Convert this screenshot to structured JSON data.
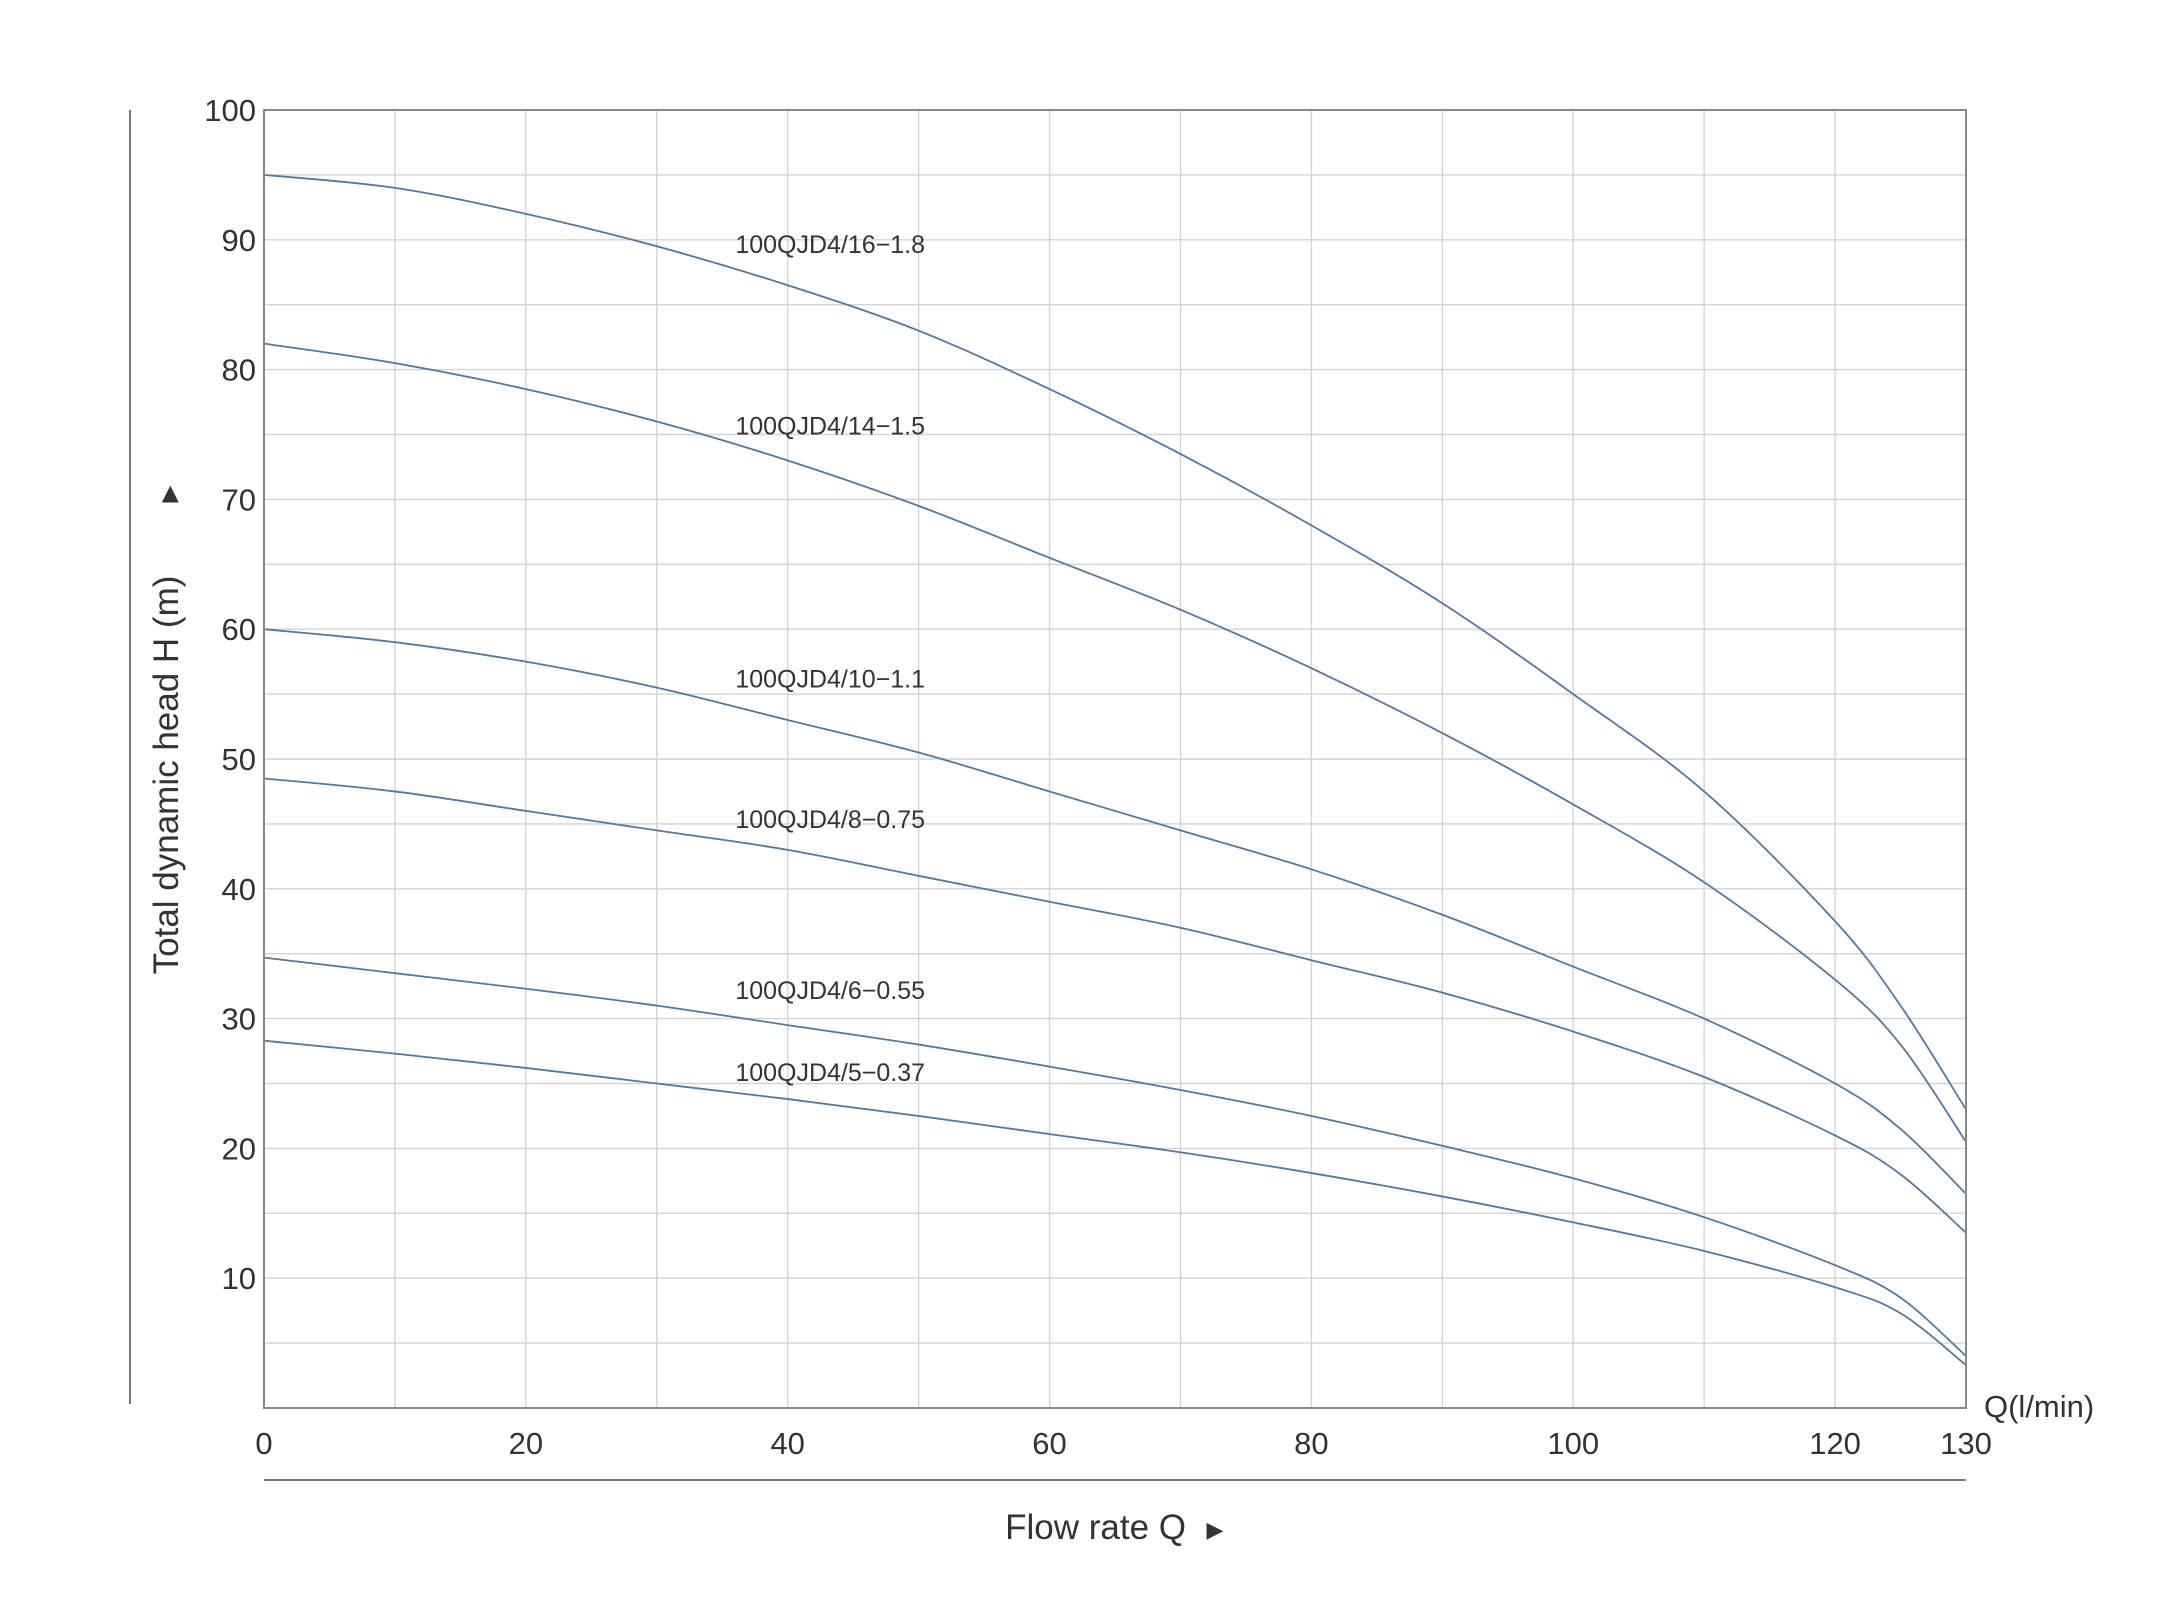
{
  "chart_data": {
    "type": "line",
    "title": "",
    "xlabel": "Flow rate Q",
    "xlabel_arrow": "▶",
    "x_unit_label": "Q(l/min)",
    "ylabel": "Total dynamic head H (m)",
    "ylabel_arrow": "▶",
    "xlim": [
      0,
      130
    ],
    "ylim": [
      0,
      100
    ],
    "x_ticks": [
      0,
      20,
      40,
      60,
      80,
      100,
      120,
      130
    ],
    "y_ticks": [
      10,
      20,
      30,
      40,
      50,
      60,
      70,
      80,
      90,
      100
    ],
    "grid": true,
    "x_grid_step": 10,
    "y_grid_step": 5,
    "legend": "inline labels",
    "colors": {
      "curve": "#4f7aa3",
      "grid": "#d4d4d4",
      "frame": "#888888",
      "text": "#333333"
    },
    "x": [
      0,
      10,
      20,
      30,
      40,
      50,
      60,
      70,
      80,
      90,
      100,
      110,
      120,
      125,
      130
    ],
    "series": [
      {
        "name": "100QJD4/16−1.8",
        "label_at": [
          36,
          89
        ],
        "values": [
          95,
          94,
          92,
          89.5,
          86.5,
          83,
          78.5,
          73.5,
          68,
          62,
          55,
          47.5,
          37.5,
          31,
          23
        ]
      },
      {
        "name": "100QJD4/14−1.5",
        "label_at": [
          36,
          75
        ],
        "values": [
          82,
          80.5,
          78.5,
          76,
          73,
          69.5,
          65.5,
          61.5,
          57,
          52,
          46.5,
          40.5,
          33,
          28,
          20.5
        ]
      },
      {
        "name": "100QJD4/10−1.1",
        "label_at": [
          36,
          55.5
        ],
        "values": [
          60,
          59,
          57.5,
          55.5,
          53,
          50.5,
          47.5,
          44.5,
          41.5,
          38,
          34,
          30,
          25,
          21.5,
          16.5
        ]
      },
      {
        "name": "100QJD4/8−0.75",
        "label_at": [
          36,
          44.7
        ],
        "values": [
          48.5,
          47.5,
          46,
          44.5,
          43,
          41,
          39,
          37,
          34.5,
          32,
          29,
          25.5,
          21,
          18,
          13.5
        ]
      },
      {
        "name": "100QJD4/6−0.55",
        "label_at": [
          36,
          31.5
        ],
        "values": [
          34.7,
          33.5,
          32.3,
          31,
          29.5,
          28,
          26.3,
          24.5,
          22.5,
          20.2,
          17.7,
          14.7,
          11,
          8.5,
          4
        ]
      },
      {
        "name": "100QJD4/5−0.37",
        "label_at": [
          36,
          25.2
        ],
        "values": [
          28.3,
          27.3,
          26.2,
          25,
          23.8,
          22.5,
          21.1,
          19.7,
          18.1,
          16.3,
          14.3,
          12.1,
          9.3,
          7.3,
          3.3
        ]
      }
    ]
  }
}
